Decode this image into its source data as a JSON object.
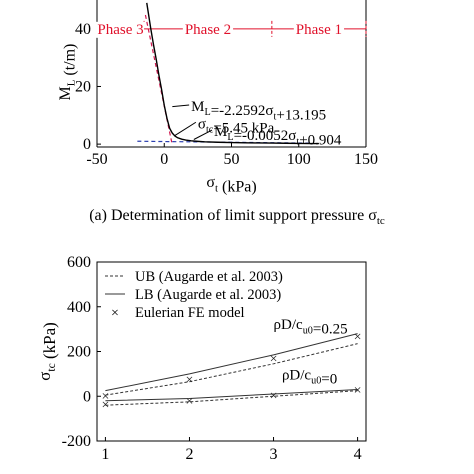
{
  "caption_top": "(a) Determination of limit support pressure σ",
  "caption_top_sub": "tc",
  "chart_data": [
    {
      "type": "line",
      "xlabel": "σ",
      "xlabel_sub": "t",
      "xlabel_unit": " (kPa)",
      "ylabel": "M",
      "ylabel_sub": "L",
      "ylabel_unit": " (t/m)",
      "xlim": [
        -50,
        150
      ],
      "ylim": [
        -1,
        50
      ],
      "xticks": [
        -50,
        0,
        50,
        100,
        150
      ],
      "yticks": [
        0,
        20,
        40
      ],
      "phases": [
        {
          "label": "Phase 3",
          "from": -50,
          "to": -15
        },
        {
          "label": "Phase 2",
          "from": -15,
          "to": 80
        },
        {
          "label": "Phase 1",
          "from": 80,
          "to": 150
        }
      ],
      "phase_y": 40,
      "series": [
        {
          "x": [
            -13.0,
            -12.5,
            -11.5,
            -10.0,
            -8.0,
            -6.0,
            -4.0,
            -2.0,
            0.0,
            2.0,
            4.0,
            6.0,
            8.0,
            10.0,
            13.0,
            16.0,
            20.0,
            25.0,
            30.0,
            40.0,
            50.0,
            60.0,
            70.0,
            80.0,
            90.0,
            100.0,
            110.0,
            115.0
          ],
          "y": [
            49.0,
            47.5,
            44.5,
            40.0,
            34.5,
            29.5,
            24.0,
            19.0,
            13.5,
            9.0,
            5.5,
            3.8,
            2.8,
            2.2,
            1.7,
            1.4,
            1.15,
            0.95,
            0.8,
            0.65,
            0.55,
            0.45,
            0.4,
            0.35,
            0.3,
            0.25,
            0.2,
            0.18
          ]
        }
      ],
      "fit_lines": [
        {
          "style": "dash",
          "color": "#d0174f",
          "x": [
            -14,
            6
          ],
          "y": [
            44.8,
            -0.37
          ]
        },
        {
          "style": "dash",
          "color": "#2b3fb0",
          "x": [
            -20,
            110
          ],
          "y": [
            1.0,
            0.33
          ]
        }
      ],
      "annotations": [
        {
          "label": "M_L=-2.2592σ_t+13.195",
          "parts": [
            [
              "M",
              ""
            ],
            [
              "L",
              "sub"
            ],
            [
              "=-2.2592σ",
              ""
            ],
            [
              "t",
              "sub"
            ],
            [
              "+13.195",
              ""
            ]
          ],
          "x": 20,
          "y": 11.5
        },
        {
          "label": "σ_tc=5.45 kPa",
          "parts": [
            [
              "σ",
              ""
            ],
            [
              "tc",
              "sub"
            ],
            [
              "=5.45 kPa",
              ""
            ]
          ],
          "x": 25,
          "y": 5.5
        },
        {
          "label": "M_L=-0.0052σ_t+0.904",
          "parts": [
            [
              "M",
              ""
            ],
            [
              "L",
              "sub"
            ],
            [
              "=-0.0052σ",
              ""
            ],
            [
              "t",
              "sub"
            ],
            [
              "+0.904",
              ""
            ]
          ],
          "x": 37,
          "y": 2.8
        }
      ]
    },
    {
      "type": "line",
      "ylabel": "σ",
      "ylabel_sub": "tc",
      "ylabel_unit": " (kPa)",
      "xlim": [
        0.9,
        4.1
      ],
      "ylim": [
        -200,
        600
      ],
      "xticks": [
        1,
        2,
        3,
        4
      ],
      "yticks": [
        -200,
        0,
        200,
        400,
        600
      ],
      "legend": [
        "UB (Augarde et al. 2003)",
        "LB (Augarde et al. 2003)",
        "Eulerian FE model"
      ],
      "legend_position": "top-left",
      "series": [
        {
          "name": "UB (Augarde et al. 2003) 0.25",
          "style": "dash",
          "x": [
            1,
            2,
            3,
            4
          ],
          "y": [
            5,
            65,
            145,
            235
          ]
        },
        {
          "name": "LB (Augarde et al. 2003) 0.25",
          "style": "solid",
          "x": [
            1,
            2,
            3,
            4
          ],
          "y": [
            25,
            100,
            185,
            280
          ]
        },
        {
          "name": "Eulerian FE model 0.25",
          "style": "marker",
          "x": [
            1,
            2,
            3,
            4
          ],
          "y": [
            3,
            78,
            170,
            270
          ]
        },
        {
          "name": "UB (Augarde et al. 2003) 0",
          "style": "dash",
          "x": [
            1,
            2,
            3,
            4
          ],
          "y": [
            -40,
            -25,
            0,
            25
          ]
        },
        {
          "name": "LB (Augarde et al. 2003) 0",
          "style": "solid",
          "x": [
            1,
            2,
            3,
            4
          ],
          "y": [
            -20,
            -10,
            10,
            30
          ]
        },
        {
          "name": "Eulerian FE model 0",
          "style": "marker",
          "x": [
            1,
            2,
            3,
            4
          ],
          "y": [
            -35,
            -18,
            5,
            30
          ]
        }
      ],
      "annotations": [
        {
          "parts": [
            [
              "ρD/c",
              ""
            ],
            [
              "u0",
              "sub"
            ],
            [
              "=0.25",
              ""
            ]
          ],
          "x": 3.0,
          "y": 300
        },
        {
          "parts": [
            [
              "ρD/c",
              ""
            ],
            [
              "u0",
              "sub"
            ],
            [
              "=0",
              ""
            ]
          ],
          "x": 3.1,
          "y": 75
        }
      ]
    }
  ]
}
